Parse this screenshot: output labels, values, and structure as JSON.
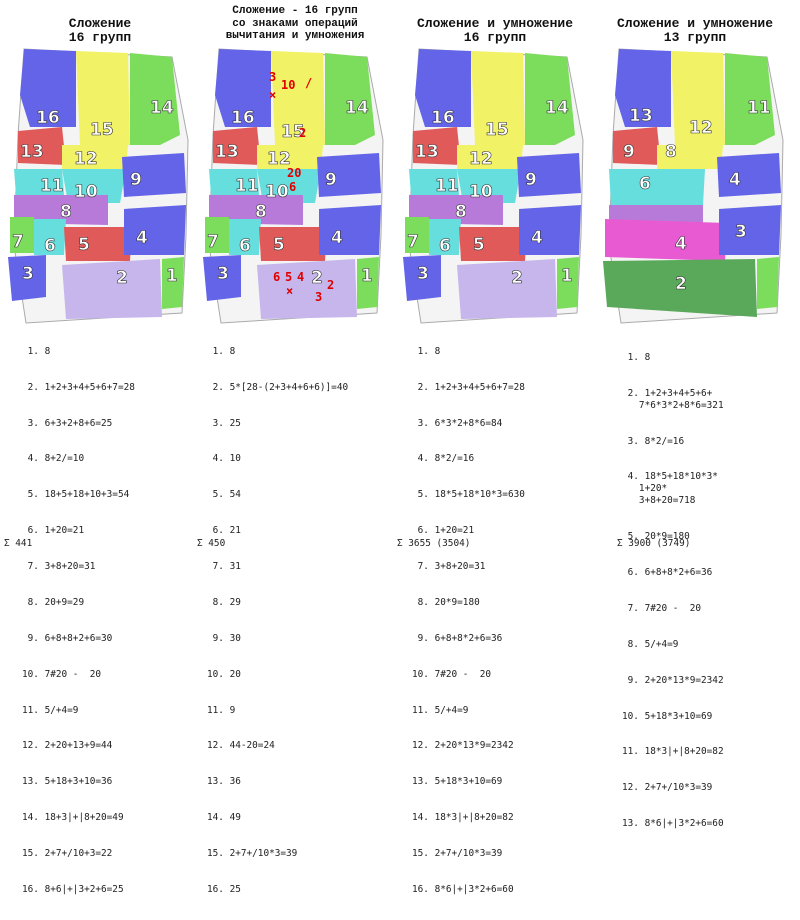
{
  "panels": [
    {
      "title_lines": [
        "Сложение",
        "16 групп"
      ],
      "items": [
        "8",
        "1+2+3+4+5+6+7=28",
        "6+3+2+8+6=25",
        "8+2/=10",
        "18+5+18+10+3=54",
        "1+20=21",
        "3+8+20=31",
        "20+9=29",
        "6+8+8+2+6=30",
        "7#20 -  20",
        "5/+4=9",
        "2+20+13+9=44",
        "5+18+3+10=36",
        "18+3|+|8+20=49",
        "2+7+/10+3=22",
        "8+6|+|3+2+6=25"
      ],
      "total": "Σ 441",
      "labels": [
        "1",
        "2",
        "3",
        "4",
        "5",
        "6",
        "7",
        "8",
        "9",
        "10",
        "11",
        "12",
        "13",
        "14",
        "15",
        "16"
      ]
    },
    {
      "title_lines": [
        "Сложение - 16 групп",
        "со знаками операций",
        "вычитания и умножения"
      ],
      "items": [
        "8",
        "5*[28-(2+3+4+6+6)]=40",
        "25",
        "10",
        "54",
        "21",
        "31",
        "29",
        "30",
        "20",
        "9",
        "44-20=24",
        "36",
        "49",
        "2+7+/10*3=39",
        "25"
      ],
      "total": "Σ 450",
      "labels": [
        "1",
        "2",
        "3",
        "4",
        "5",
        "6",
        "7",
        "8",
        "9",
        "10",
        "11",
        "12",
        "13",
        "14",
        "15",
        "16"
      ],
      "marks": [
        "3",
        "10",
        "/",
        "×",
        "2",
        "20",
        "6",
        "6",
        "5",
        "4",
        "×",
        "3",
        "2"
      ]
    },
    {
      "title_lines": [
        "Сложение и умножение",
        "16 групп"
      ],
      "items": [
        "8",
        "1+2+3+4+5+6+7=28",
        "6*3*2+8*6=84",
        "8*2/=16",
        "18*5+18*10*3=630",
        "1+20=21",
        "3+8+20=31",
        "20*9=180",
        "6+8+8*2+6=36",
        "7#20 -  20",
        "5/+4=9",
        "2+20*13*9=2342",
        "5+18*3+10=69",
        "18*3|+|8+20=82",
        "2+7+/10*3=39",
        "8*6|+|3*2+6=60"
      ],
      "total": "Σ 3655 (3504)",
      "labels": [
        "1",
        "2",
        "3",
        "4",
        "5",
        "6",
        "7",
        "8",
        "9",
        "10",
        "11",
        "12",
        "13",
        "14",
        "15",
        "16"
      ]
    },
    {
      "title_lines": [
        "Сложение и умножение",
        "13 групп"
      ],
      "items": [
        "8",
        "1+2+3+4+5+6+\n   7*6*3*2+8*6=321",
        "8*2/=16",
        "18*5+18*10*3*\n   1+20*\n   3+8+20=718",
        "20*9=180",
        "6+8+8*2+6=36",
        "7#20 -  20",
        "5/+4=9",
        "2+20*13*9=2342",
        "5+18*3+10=69",
        "18*3|+|8+20=82",
        "2+7+/10*3=39",
        "8*6|+|3*2+6=60"
      ],
      "total": "Σ 3900 (3749)",
      "labels": [
        "1",
        "2",
        "3",
        "4",
        "6",
        "8",
        "9",
        "11",
        "12",
        "13"
      ]
    }
  ],
  "colors": {
    "blue": "#6464e8",
    "yellow": "#f2f266",
    "green": "#7cdc5c",
    "red": "#e05a5a",
    "cyan": "#66dede",
    "violet": "#b87ad8",
    "lavender": "#c6b6ec",
    "darkgreen": "#5aa85a",
    "magenta": "#e85ad2",
    "tablet": "#f4f4f4",
    "mark": "#e00000"
  }
}
